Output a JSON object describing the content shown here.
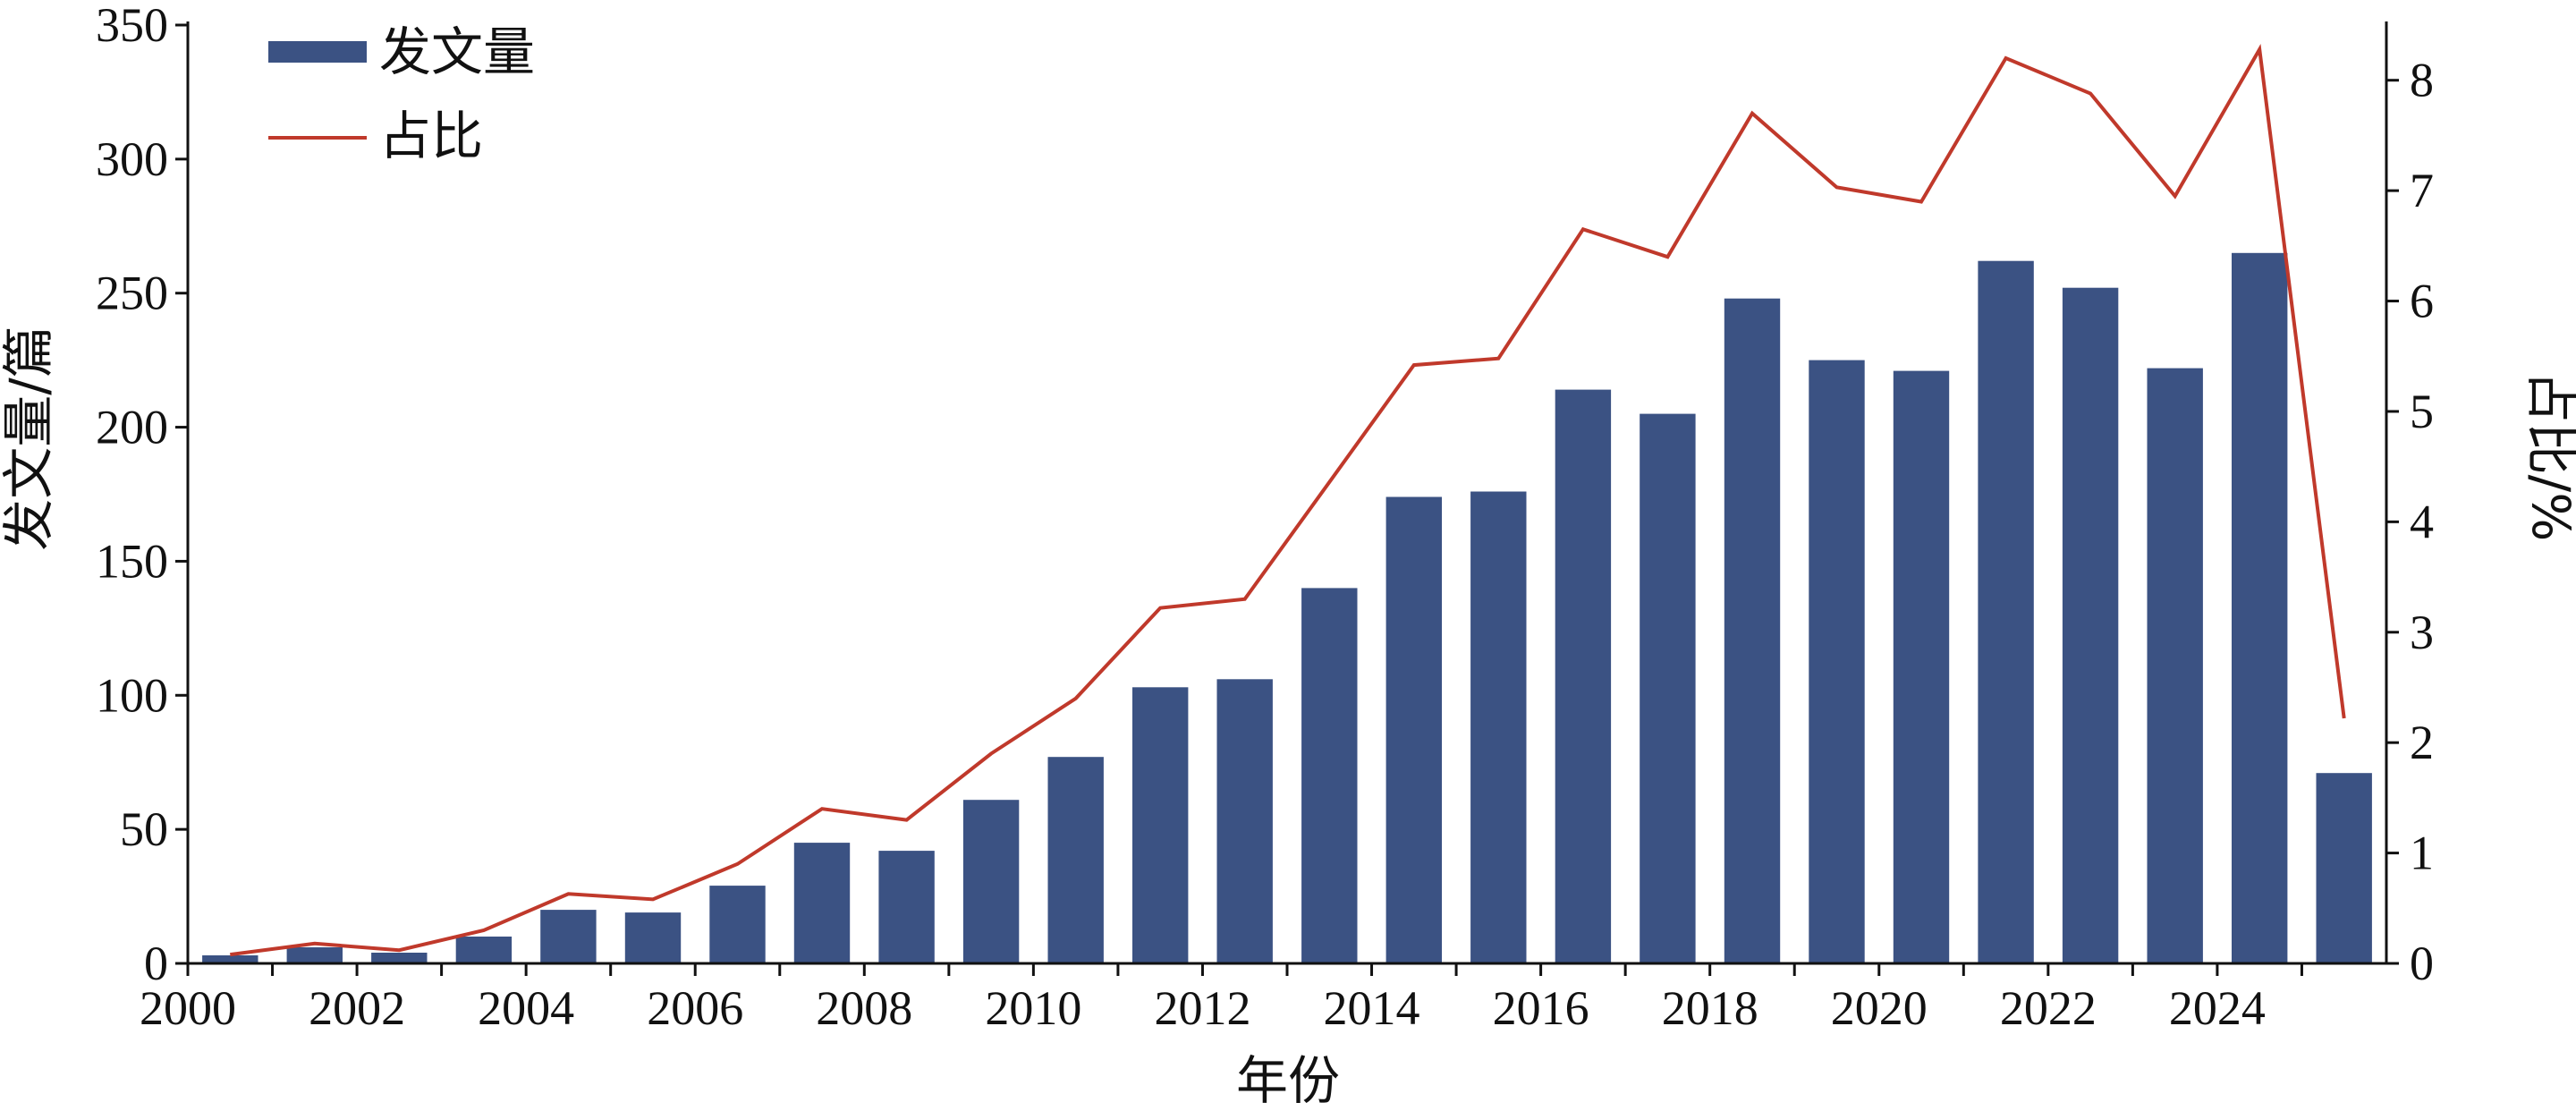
{
  "chart_data": {
    "type": "bar",
    "categories": [
      "2000",
      "2001",
      "2002",
      "2003",
      "2004",
      "2005",
      "2006",
      "2007",
      "2008",
      "2009",
      "2010",
      "2011",
      "2012",
      "2013",
      "2014",
      "2015",
      "2016",
      "2017",
      "2018",
      "2019",
      "2020",
      "2021",
      "2022",
      "2023",
      "2024",
      "2025"
    ],
    "x_tick_labels": [
      "2000",
      "2002",
      "2004",
      "2006",
      "2008",
      "2010",
      "2012",
      "2014",
      "2016",
      "2018",
      "2020",
      "2022",
      "2024"
    ],
    "series": [
      {
        "name": "发文量",
        "type": "bar",
        "axis": "left",
        "color": "#3b5283",
        "values": [
          3,
          6,
          4,
          10,
          20,
          19,
          29,
          45,
          42,
          61,
          77,
          103,
          106,
          140,
          174,
          176,
          214,
          205,
          248,
          225,
          221,
          262,
          252,
          222,
          265,
          71
        ]
      },
      {
        "name": "占比",
        "type": "line",
        "axis": "right",
        "color": "#c0392b",
        "values": [
          0.08,
          0.18,
          0.12,
          0.3,
          0.63,
          0.58,
          0.9,
          1.4,
          1.3,
          1.9,
          2.4,
          3.22,
          3.3,
          4.36,
          5.42,
          5.48,
          6.65,
          6.4,
          7.7,
          7.03,
          6.9,
          8.2,
          7.88,
          6.95,
          8.28,
          2.22
        ]
      }
    ],
    "xlabel": "年份",
    "ylabel": "发文量/篇",
    "y2label": "占比/%",
    "ylim": [
      0,
      350
    ],
    "y2lim": [
      0,
      8.5
    ],
    "yticks": [
      0,
      50,
      100,
      150,
      200,
      250,
      300,
      350
    ],
    "y2ticks": [
      0,
      1,
      2,
      3,
      4,
      5,
      6,
      7,
      8
    ],
    "grid": false,
    "legend_position": "top-left"
  }
}
